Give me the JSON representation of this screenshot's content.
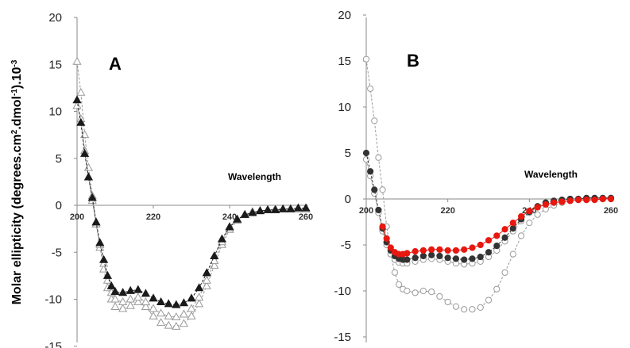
{
  "figure": {
    "ylabel_main": "Molar ellipticity (degrees.cm",
    "ylabel_sup1": "2",
    "ylabel_mid": ".dmol",
    "ylabel_sup2": "-1",
    "ylabel_end": ").10",
    "ylabel_sup3": "-3"
  },
  "chart_data": [
    {
      "type": "scatter",
      "panel_label": "A",
      "xlabel": "Wavelength",
      "xlim": [
        200,
        260
      ],
      "ylim": [
        -15,
        20
      ],
      "x_ticks": [
        "200",
        "220",
        "240",
        "260"
      ],
      "y_ticks": [
        "20",
        "15",
        "10",
        "5",
        "0",
        "-5",
        "-10",
        "-15"
      ],
      "series": [
        {
          "marker": "triangle-open",
          "color": "#9a9a9a",
          "dashed": true,
          "x": [
            200,
            201,
            202,
            203,
            204,
            205,
            206,
            207,
            208,
            209,
            210,
            212,
            214,
            216,
            218,
            220,
            222,
            224,
            226,
            228,
            230,
            232,
            234,
            236,
            238,
            240,
            242,
            244,
            246,
            248,
            250,
            252,
            254,
            256,
            258,
            260
          ],
          "y": [
            15.3,
            12.0,
            7.5,
            4.0,
            1.0,
            -2.0,
            -4.5,
            -6.8,
            -8.8,
            -10.0,
            -10.8,
            -11.0,
            -10.7,
            -10.3,
            -10.8,
            -11.8,
            -12.5,
            -12.8,
            -12.9,
            -12.6,
            -11.8,
            -10.5,
            -8.6,
            -6.4,
            -4.2,
            -2.6,
            -1.6,
            -1.0,
            -0.7,
            -0.6,
            -0.5,
            -0.5,
            -0.4,
            -0.4,
            -0.4,
            -0.4
          ]
        },
        {
          "marker": "triangle-open",
          "color": "#9a9a9a",
          "dashed": true,
          "x": [
            200,
            201,
            202,
            203,
            204,
            205,
            206,
            207,
            208,
            209,
            210,
            212,
            214,
            216,
            218,
            220,
            222,
            224,
            226,
            228,
            230,
            232,
            234,
            236,
            238,
            240,
            242,
            244,
            246,
            248,
            250,
            252,
            254,
            256,
            258,
            260
          ],
          "y": [
            10.6,
            9.2,
            5.8,
            3.0,
            0.5,
            -2.0,
            -4.2,
            -6.2,
            -8.0,
            -9.3,
            -10.0,
            -10.3,
            -10.0,
            -9.8,
            -10.3,
            -11.0,
            -11.5,
            -11.8,
            -11.9,
            -11.6,
            -11.0,
            -9.8,
            -8.0,
            -5.9,
            -3.9,
            -2.4,
            -1.5,
            -1.0,
            -0.7,
            -0.6,
            -0.5,
            -0.4,
            -0.4,
            -0.4,
            -0.4,
            -0.4
          ]
        },
        {
          "marker": "triangle-filled",
          "color": "#1a1a1a",
          "dashed": true,
          "x": [
            200,
            201,
            202,
            203,
            204,
            205,
            206,
            207,
            208,
            209,
            210,
            212,
            214,
            216,
            218,
            220,
            222,
            224,
            226,
            228,
            230,
            232,
            234,
            236,
            238,
            240,
            242,
            244,
            246,
            248,
            250,
            252,
            254,
            256,
            258,
            260
          ],
          "y": [
            11.2,
            8.8,
            5.5,
            3.0,
            0.8,
            -1.8,
            -4.0,
            -5.8,
            -7.5,
            -8.6,
            -9.2,
            -9.3,
            -9.1,
            -9.0,
            -9.4,
            -9.9,
            -10.3,
            -10.5,
            -10.6,
            -10.4,
            -9.9,
            -8.8,
            -7.2,
            -5.4,
            -3.6,
            -2.3,
            -1.5,
            -1.0,
            -0.8,
            -0.6,
            -0.5,
            -0.5,
            -0.4,
            -0.4,
            -0.3,
            -0.3
          ]
        }
      ]
    },
    {
      "type": "scatter",
      "panel_label": "B",
      "xlabel": "Wavelength",
      "xlim": [
        200,
        260
      ],
      "ylim": [
        -15,
        20
      ],
      "x_ticks": [
        "200",
        "220",
        "240",
        "260"
      ],
      "y_ticks": [
        "20",
        "15",
        "10",
        "5",
        "0",
        "-5",
        "-10",
        "-15"
      ],
      "series": [
        {
          "marker": "circle-open",
          "color": "#9a9a9a",
          "dashed": true,
          "x": [
            200,
            201,
            202,
            203,
            204,
            205,
            206,
            207,
            208,
            209,
            210,
            212,
            214,
            216,
            218,
            220,
            222,
            224,
            226,
            228,
            230,
            232,
            234,
            236,
            238,
            240,
            242,
            244,
            246,
            248,
            250,
            252,
            254,
            256,
            258,
            260
          ],
          "y": [
            15.2,
            12.0,
            8.5,
            4.5,
            1.0,
            -3.0,
            -6.0,
            -8.0,
            -9.3,
            -9.8,
            -10.0,
            -10.2,
            -10.0,
            -10.1,
            -10.6,
            -11.2,
            -11.7,
            -12.0,
            -12.0,
            -11.8,
            -11.0,
            -9.8,
            -8.0,
            -6.0,
            -4.0,
            -2.6,
            -1.7,
            -1.1,
            -0.7,
            -0.4,
            -0.2,
            -0.1,
            -0.1,
            0.0,
            0.0,
            0.1
          ]
        },
        {
          "marker": "circle-open",
          "color": "#9a9a9a",
          "dashed": true,
          "x": [
            200,
            201,
            202,
            203,
            204,
            205,
            206,
            207,
            208,
            209,
            210,
            212,
            214,
            216,
            218,
            220,
            222,
            224,
            226,
            228,
            230,
            232,
            234,
            236,
            238,
            240,
            242,
            244,
            246,
            248,
            250,
            252,
            254,
            256,
            258,
            260
          ],
          "y": [
            4.3,
            2.5,
            0.6,
            -1.5,
            -3.5,
            -5.0,
            -6.0,
            -6.6,
            -6.9,
            -7.0,
            -7.0,
            -6.8,
            -6.6,
            -6.5,
            -6.6,
            -6.8,
            -7.0,
            -7.1,
            -7.0,
            -6.8,
            -6.3,
            -5.6,
            -4.6,
            -3.5,
            -2.4,
            -1.5,
            -0.9,
            -0.5,
            -0.3,
            -0.1,
            0.0,
            0.0,
            0.1,
            0.1,
            0.1,
            0.1
          ]
        },
        {
          "marker": "circle-filled",
          "color": "#333333",
          "dashed": true,
          "x": [
            200,
            201,
            202,
            203,
            204,
            205,
            206,
            207,
            208,
            209,
            210,
            212,
            214,
            216,
            218,
            220,
            222,
            224,
            226,
            228,
            230,
            232,
            234,
            236,
            238,
            240,
            242,
            244,
            246,
            248,
            250,
            252,
            254,
            256,
            258,
            260
          ],
          "y": [
            5.0,
            3.0,
            1.0,
            -1.2,
            -3.2,
            -4.7,
            -5.6,
            -6.2,
            -6.5,
            -6.6,
            -6.6,
            -6.4,
            -6.2,
            -6.1,
            -6.2,
            -6.4,
            -6.5,
            -6.6,
            -6.5,
            -6.3,
            -5.8,
            -5.1,
            -4.2,
            -3.2,
            -2.2,
            -1.4,
            -0.8,
            -0.4,
            -0.2,
            -0.1,
            0.0,
            0.0,
            0.1,
            0.1,
            0.1,
            0.1
          ]
        },
        {
          "marker": "circle-filled",
          "color": "#e8170f",
          "dashed": false,
          "x": [
            204,
            205,
            206,
            207,
            208,
            209,
            210,
            212,
            214,
            216,
            218,
            220,
            222,
            224,
            226,
            228,
            230,
            232,
            234,
            236,
            238,
            240,
            242,
            244,
            246,
            248,
            250,
            252,
            254,
            256,
            258,
            260
          ],
          "y": [
            -3.0,
            -4.3,
            -5.3,
            -5.8,
            -6.0,
            -6.0,
            -5.9,
            -5.7,
            -5.6,
            -5.5,
            -5.5,
            -5.6,
            -5.6,
            -5.5,
            -5.3,
            -5.0,
            -4.5,
            -4.0,
            -3.3,
            -2.6,
            -1.9,
            -1.3,
            -0.9,
            -0.6,
            -0.4,
            -0.3,
            -0.2,
            -0.1,
            -0.1,
            -0.1,
            0.0,
            0.0
          ]
        }
      ]
    }
  ]
}
